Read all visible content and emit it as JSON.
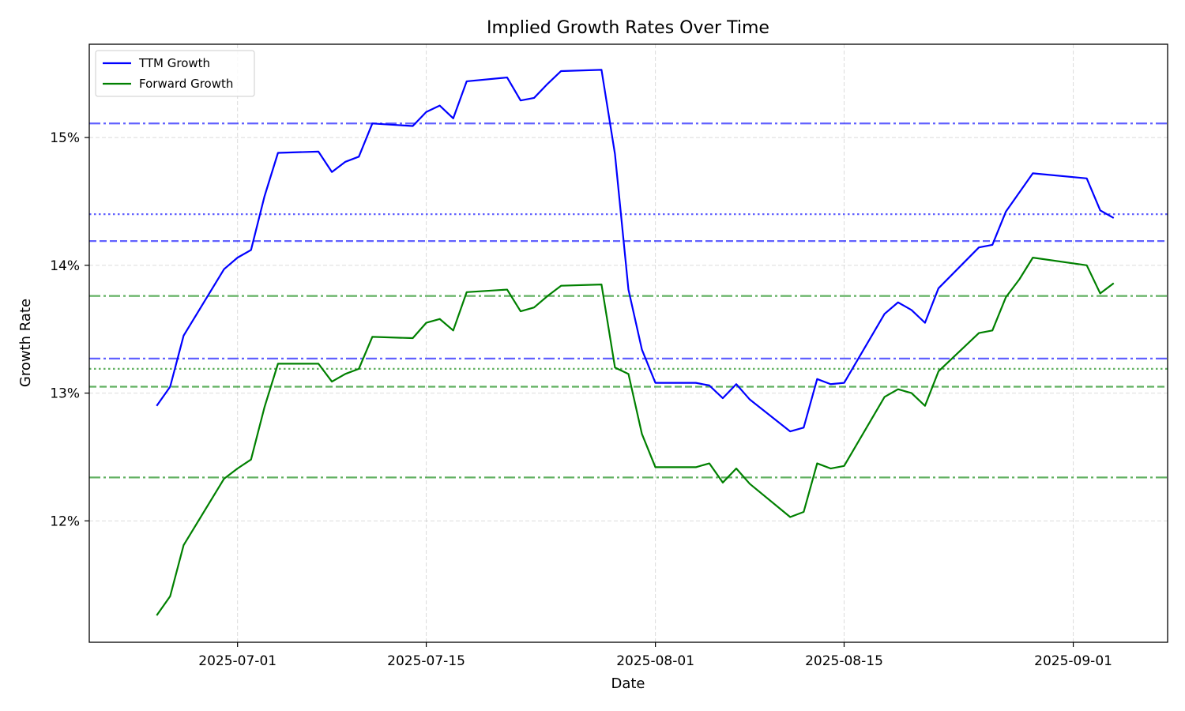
{
  "chart_data": {
    "type": "line",
    "title": "Implied Growth Rates Over Time",
    "xlabel": "Date",
    "ylabel": "Growth Rate",
    "xlim": [
      "2025-06-20",
      "2025-09-08"
    ],
    "ylim": [
      11.05,
      15.73
    ],
    "x_ticks": [
      "2025-07-01",
      "2025-07-15",
      "2025-08-01",
      "2025-08-15",
      "2025-09-01"
    ],
    "y_ticks": [
      12,
      13,
      14,
      15
    ],
    "y_tick_labels": [
      "12%",
      "13%",
      "14%",
      "15%"
    ],
    "grid": true,
    "legend_position": "top-left",
    "x": [
      "2025-06-25",
      "2025-06-26",
      "2025-06-27",
      "2025-06-30",
      "2025-07-01",
      "2025-07-02",
      "2025-07-03",
      "2025-07-04",
      "2025-07-07",
      "2025-07-08",
      "2025-07-09",
      "2025-07-10",
      "2025-07-11",
      "2025-07-14",
      "2025-07-15",
      "2025-07-16",
      "2025-07-17",
      "2025-07-18",
      "2025-07-21",
      "2025-07-22",
      "2025-07-23",
      "2025-07-24",
      "2025-07-25",
      "2025-07-28",
      "2025-07-29",
      "2025-07-30",
      "2025-07-31",
      "2025-08-01",
      "2025-08-04",
      "2025-08-05",
      "2025-08-06",
      "2025-08-07",
      "2025-08-08",
      "2025-08-11",
      "2025-08-12",
      "2025-08-13",
      "2025-08-14",
      "2025-08-15",
      "2025-08-18",
      "2025-08-19",
      "2025-08-20",
      "2025-08-21",
      "2025-08-22",
      "2025-08-25",
      "2025-08-26",
      "2025-08-27",
      "2025-08-28",
      "2025-08-29",
      "2025-09-02",
      "2025-09-03",
      "2025-09-04"
    ],
    "series": [
      {
        "name": "TTM Growth",
        "color": "#0000ff",
        "values": [
          12.9,
          13.05,
          13.45,
          13.97,
          14.06,
          14.12,
          14.54,
          14.88,
          14.89,
          14.73,
          14.81,
          14.85,
          15.11,
          15.09,
          15.2,
          15.25,
          15.15,
          15.44,
          15.47,
          15.29,
          15.31,
          15.42,
          15.52,
          15.53,
          14.87,
          13.81,
          13.34,
          13.08,
          13.08,
          13.06,
          12.96,
          13.07,
          12.95,
          12.7,
          12.73,
          13.11,
          13.07,
          13.08,
          13.62,
          13.71,
          13.65,
          13.55,
          13.82,
          14.14,
          14.16,
          14.42,
          14.57,
          14.72,
          14.68,
          14.43,
          14.37
        ]
      },
      {
        "name": "Forward Growth",
        "color": "#008000",
        "values": [
          11.26,
          11.41,
          11.81,
          12.33,
          12.41,
          12.48,
          12.89,
          13.23,
          13.23,
          13.09,
          13.15,
          13.19,
          13.44,
          13.43,
          13.55,
          13.58,
          13.49,
          13.79,
          13.81,
          13.64,
          13.67,
          13.76,
          13.84,
          13.85,
          13.2,
          13.15,
          12.68,
          12.42,
          12.42,
          12.45,
          12.3,
          12.41,
          12.29,
          12.03,
          12.07,
          12.45,
          12.41,
          12.43,
          12.97,
          13.03,
          13.0,
          12.9,
          13.17,
          13.47,
          13.49,
          13.75,
          13.89,
          14.06,
          14.0,
          13.78,
          13.86
        ]
      }
    ],
    "reference_lines": [
      {
        "value": 15.11,
        "color": "#0000ff",
        "style": "dashdot"
      },
      {
        "value": 14.4,
        "color": "#0000ff",
        "style": "dotted"
      },
      {
        "value": 14.19,
        "color": "#0000ff",
        "style": "dashed"
      },
      {
        "value": 13.27,
        "color": "#0000ff",
        "style": "dashdot"
      },
      {
        "value": 13.76,
        "color": "#008000",
        "style": "dashdot"
      },
      {
        "value": 13.19,
        "color": "#008000",
        "style": "dotted"
      },
      {
        "value": 13.05,
        "color": "#008000",
        "style": "dashed"
      },
      {
        "value": 12.34,
        "color": "#008000",
        "style": "dashdot"
      }
    ]
  }
}
